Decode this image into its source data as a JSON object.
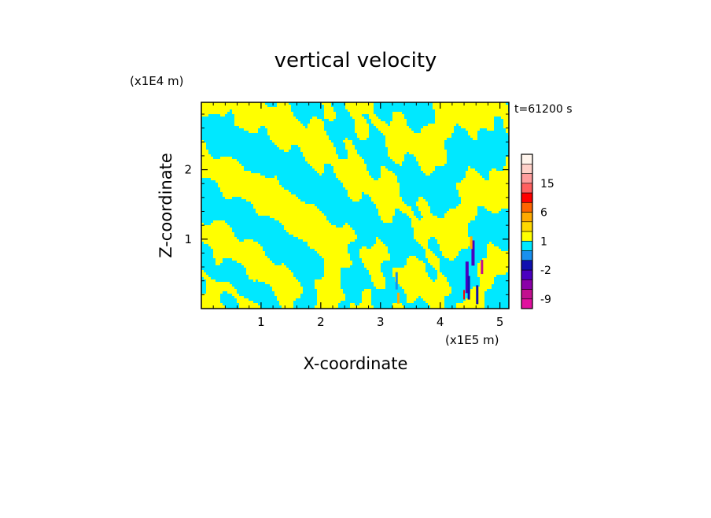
{
  "chart_data": {
    "type": "heatmap",
    "title": "vertical velocity",
    "xlabel": "X-coordinate",
    "ylabel": "Z-coordinate",
    "x_unit": "(x1E5 m)",
    "y_unit": "(x1E4 m)",
    "time_label": "t=61200 s",
    "xlim": [
      0,
      5.15
    ],
    "ylim": [
      0,
      2.97
    ],
    "x_ticks": [
      1,
      2,
      3,
      4,
      5
    ],
    "y_ticks": [
      1,
      2
    ],
    "field_note": "banded pattern of mostly yellow (0 to 1) and cyan (-1 to 0) contours with small strong updraft/downdraft cores near x=3.2 and x=4.5",
    "colorbar": {
      "levels": [
        -12,
        -9,
        -6,
        -4,
        -2,
        -1,
        0,
        1,
        2,
        4,
        6,
        9,
        12,
        15,
        18,
        22
      ],
      "colors": [
        "#e0109e",
        "#c2108f",
        "#8a00a8",
        "#4a00c0",
        "#1010b0",
        "#1890f0",
        "#00e8ff",
        "#ffff00",
        "#ffd800",
        "#ffaa00",
        "#ff6400",
        "#ff0000",
        "#ff6060",
        "#ff9d9d",
        "#ffd0c8",
        "#fff4ec"
      ],
      "tick_labels": [
        {
          "value": 15,
          "label": "15"
        },
        {
          "value": 6,
          "label": "6"
        },
        {
          "value": 1,
          "label": "1"
        },
        {
          "value": -2,
          "label": "-2"
        },
        {
          "value": -9,
          "label": "-9"
        }
      ]
    }
  }
}
